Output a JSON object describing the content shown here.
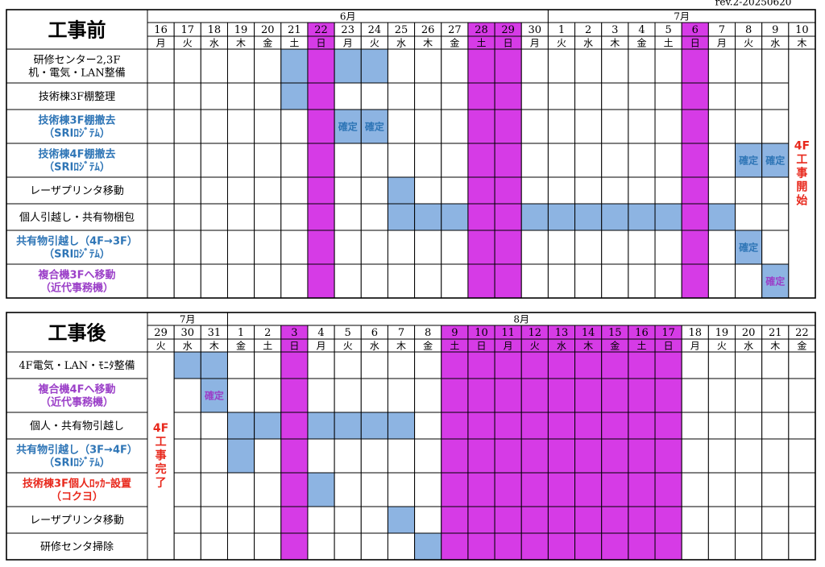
{
  "rev": "rev.2-20250620",
  "holiday_color": "#d63be6",
  "block_color": "#8db4e2",
  "sections": [
    {
      "title": "工事前",
      "months": [
        {
          "label": "6月",
          "days": [
            {
              "day": 16,
              "weekday": "月"
            },
            {
              "day": 17,
              "weekday": "火"
            },
            {
              "day": 18,
              "weekday": "水"
            },
            {
              "day": 19,
              "weekday": "木"
            },
            {
              "day": 20,
              "weekday": "金"
            },
            {
              "day": 21,
              "weekday": "土"
            },
            {
              "day": 22,
              "weekday": "日",
              "holiday": true
            },
            {
              "day": 23,
              "weekday": "月"
            },
            {
              "day": 24,
              "weekday": "火"
            },
            {
              "day": 25,
              "weekday": "水"
            },
            {
              "day": 26,
              "weekday": "木"
            },
            {
              "day": 27,
              "weekday": "金"
            },
            {
              "day": 28,
              "weekday": "土",
              "holiday": true
            },
            {
              "day": 29,
              "weekday": "日",
              "holiday": true
            },
            {
              "day": 30,
              "weekday": "月"
            }
          ]
        },
        {
          "label": "7月",
          "days": [
            {
              "day": 1,
              "weekday": "火"
            },
            {
              "day": 2,
              "weekday": "水"
            },
            {
              "day": 3,
              "weekday": "木"
            },
            {
              "day": 4,
              "weekday": "金"
            },
            {
              "day": 5,
              "weekday": "土"
            },
            {
              "day": 6,
              "weekday": "日",
              "holiday": true
            },
            {
              "day": 7,
              "weekday": "月"
            },
            {
              "day": 8,
              "weekday": "火"
            },
            {
              "day": 9,
              "weekday": "水"
            },
            {
              "day": 10,
              "weekday": "木"
            }
          ]
        }
      ],
      "note": {
        "day": 10,
        "text": "4F工事開始",
        "color": "#e8281c"
      },
      "tasks": [
        {
          "label": [
            "研修センター2,3F",
            "机・電気・LAN整備"
          ],
          "cells": [
            {
              "day": 21
            },
            {
              "day": 23
            },
            {
              "day": 24
            }
          ]
        },
        {
          "label": [
            "技術棟3F棚整理"
          ],
          "cells": [
            {
              "day": 21
            }
          ]
        },
        {
          "label": [
            "技術棟3F棚撤去",
            "（SRIﾛｼﾞﾃﾑ）"
          ],
          "color": "#2e75b6",
          "cells": [
            {
              "day": 23,
              "text": "確定"
            },
            {
              "day": 24,
              "text": "確定"
            }
          ]
        },
        {
          "label": [
            "技術棟4F棚撤去",
            "（SRIﾛｼﾞﾃﾑ）"
          ],
          "color": "#2e75b6",
          "cells": [
            {
              "day": 8,
              "text": "確定"
            },
            {
              "day": 9,
              "text": "確定"
            }
          ]
        },
        {
          "label": [
            "レーザプリンタ移動"
          ],
          "cells": [
            {
              "day": 25
            }
          ]
        },
        {
          "label": [
            "個人引越し・共有物梱包"
          ],
          "cells": [
            {
              "day": 25
            },
            {
              "day": 26
            },
            {
              "day": 27
            },
            {
              "day": 30
            },
            {
              "day": 1
            },
            {
              "day": 2
            },
            {
              "day": 3
            },
            {
              "day": 4
            },
            {
              "day": 5
            },
            {
              "day": 7
            }
          ]
        },
        {
          "label": [
            "共有物引越し（4F→3F）",
            "（SRIﾛｼﾞﾃﾑ）"
          ],
          "color": "#2e75b6",
          "cells": [
            {
              "day": 8,
              "text": "確定"
            }
          ]
        },
        {
          "label": [
            "複合機3Fへ移動",
            "（近代事務機）"
          ],
          "color": "#9b3fc8",
          "cells": [
            {
              "day": 9,
              "text": "確定"
            }
          ]
        }
      ]
    },
    {
      "title": "工事後",
      "months": [
        {
          "label": "7月",
          "days": [
            {
              "day": 29,
              "weekday": "火"
            },
            {
              "day": 30,
              "weekday": "水"
            },
            {
              "day": 31,
              "weekday": "木"
            }
          ]
        },
        {
          "label": "8月",
          "days": [
            {
              "day": 1,
              "weekday": "金"
            },
            {
              "day": 2,
              "weekday": "土"
            },
            {
              "day": 3,
              "weekday": "日",
              "holiday": true
            },
            {
              "day": 4,
              "weekday": "月"
            },
            {
              "day": 5,
              "weekday": "火"
            },
            {
              "day": 6,
              "weekday": "水"
            },
            {
              "day": 7,
              "weekday": "木"
            },
            {
              "day": 8,
              "weekday": "金"
            },
            {
              "day": 9,
              "weekday": "土",
              "holiday": true
            },
            {
              "day": 10,
              "weekday": "日",
              "holiday": true
            },
            {
              "day": 11,
              "weekday": "月",
              "holiday": true
            },
            {
              "day": 12,
              "weekday": "火",
              "holiday": true
            },
            {
              "day": 13,
              "weekday": "水",
              "holiday": true
            },
            {
              "day": 14,
              "weekday": "木",
              "holiday": true
            },
            {
              "day": 15,
              "weekday": "金",
              "holiday": true
            },
            {
              "day": 16,
              "weekday": "土",
              "holiday": true
            },
            {
              "day": 17,
              "weekday": "日",
              "holiday": true
            },
            {
              "day": 18,
              "weekday": "月"
            },
            {
              "day": 19,
              "weekday": "火"
            },
            {
              "day": 20,
              "weekday": "水"
            },
            {
              "day": 21,
              "weekday": "木"
            },
            {
              "day": 22,
              "weekday": "金"
            }
          ]
        }
      ],
      "note": {
        "day": 29,
        "text": "4F工事完了",
        "color": "#e8281c"
      },
      "tasks": [
        {
          "label": [
            "4F電気・LAN・ﾓﾆﾀ整備"
          ],
          "cells": [
            {
              "day": 30
            },
            {
              "day": 31
            }
          ]
        },
        {
          "label": [
            "複合機4Fへ移動",
            "（近代事務機）"
          ],
          "color": "#9b3fc8",
          "cells": [
            {
              "day": 31,
              "text": "確定"
            }
          ]
        },
        {
          "label": [
            "個人・共有物引越し"
          ],
          "cells": [
            {
              "day": 1
            },
            {
              "day": 2
            },
            {
              "day": 4
            },
            {
              "day": 5
            },
            {
              "day": 6
            },
            {
              "day": 7
            }
          ]
        },
        {
          "label": [
            "共有物引越し（3F→4F）",
            "（SRIﾛｼﾞﾃﾑ）"
          ],
          "color": "#2e75b6",
          "cells": [
            {
              "day": 1
            }
          ]
        },
        {
          "label": [
            "技術棟3F個人ﾛｯｶｰ設置",
            "（コクヨ）"
          ],
          "color": "#e8281c",
          "cells": [
            {
              "day": 4
            }
          ]
        },
        {
          "label": [
            "レーザプリンタ移動"
          ],
          "cells": [
            {
              "day": 7
            }
          ]
        },
        {
          "label": [
            "研修センタ掃除"
          ],
          "cells": [
            {
              "day": 8
            }
          ]
        }
      ]
    }
  ]
}
